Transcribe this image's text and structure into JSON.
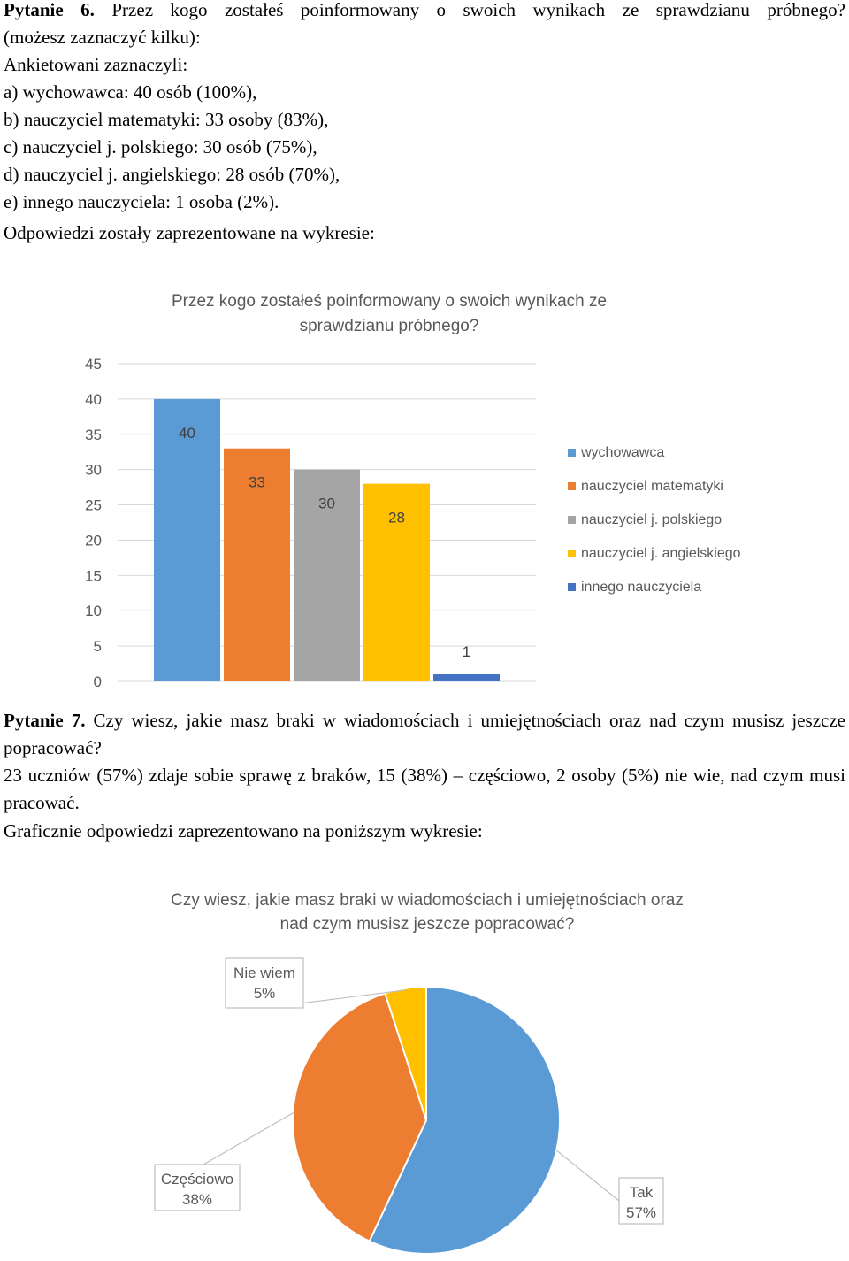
{
  "q6": {
    "heading": "Pytanie 6.",
    "question": "Przez kogo zostałeś poinformowany o swoich wynikach ze sprawdzianu próbnego?",
    "note": "(możesz zaznaczyć kilku):",
    "intro": "Ankietowani zaznaczyli:",
    "answers": [
      "a) wychowawca: 40 osób (100%),",
      "b) nauczyciel matematyki: 33 osoby (83%),",
      "c) nauczyciel j. polskiego: 30 osób (75%),",
      "d) nauczyciel j. angielskiego: 28 osób (70%),",
      "e) innego nauczyciela: 1 osoba (2%)."
    ],
    "outro": "Odpowiedzi zostały zaprezentowane na wykresie:"
  },
  "q7": {
    "heading": "Pytanie 7.",
    "question": "Czy wiesz, jakie masz braki w wiadomościach i umiejętnościach oraz nad czym musisz jeszcze popracować?",
    "answer": "23 uczniów (57%) zdaje sobie sprawę z braków, 15 (38%) – częściowo, 2 osoby (5%) nie wie, nad czym musi pracować.",
    "outro": "Graficznie odpowiedzi zaprezentowano na poniższym wykresie:"
  },
  "chart_data": [
    {
      "type": "bar",
      "title_lines": [
        "Przez kogo zostałeś poinformowany o swoich wynikach ze",
        "sprawdzianu próbnego?"
      ],
      "categories": [
        "wychowawca",
        "nauczyciel matematyki",
        "nauczyciel j. polskiego",
        "nauczyciel j. angielskiego",
        "innego nauczyciela"
      ],
      "values": [
        40,
        33,
        30,
        28,
        1
      ],
      "colors": [
        "#5b9bd5",
        "#ed7d31",
        "#a5a5a5",
        "#ffc000",
        "#4472c4"
      ],
      "label_colors": [
        "#404040",
        "#404040",
        "#404040",
        "#404040",
        "#404040"
      ],
      "yticks": [
        0,
        5,
        10,
        15,
        20,
        25,
        30,
        35,
        40,
        45
      ],
      "ylim": [
        0,
        45
      ],
      "grid": true,
      "legend": "right"
    },
    {
      "type": "pie",
      "title_lines": [
        "Czy wiesz, jakie masz braki w wiadomościach i umiejętnościach oraz",
        "nad czym musisz jeszcze popracować?"
      ],
      "slices": [
        {
          "name": "Tak",
          "value": 57,
          "label": "57%",
          "color": "#5b9bd5"
        },
        {
          "name": "Częściowo",
          "value": 38,
          "label": "38%",
          "color": "#ed7d31"
        },
        {
          "name": "Nie wiem",
          "value": 5,
          "label": "5%",
          "color": "#ffc000"
        }
      ]
    }
  ]
}
